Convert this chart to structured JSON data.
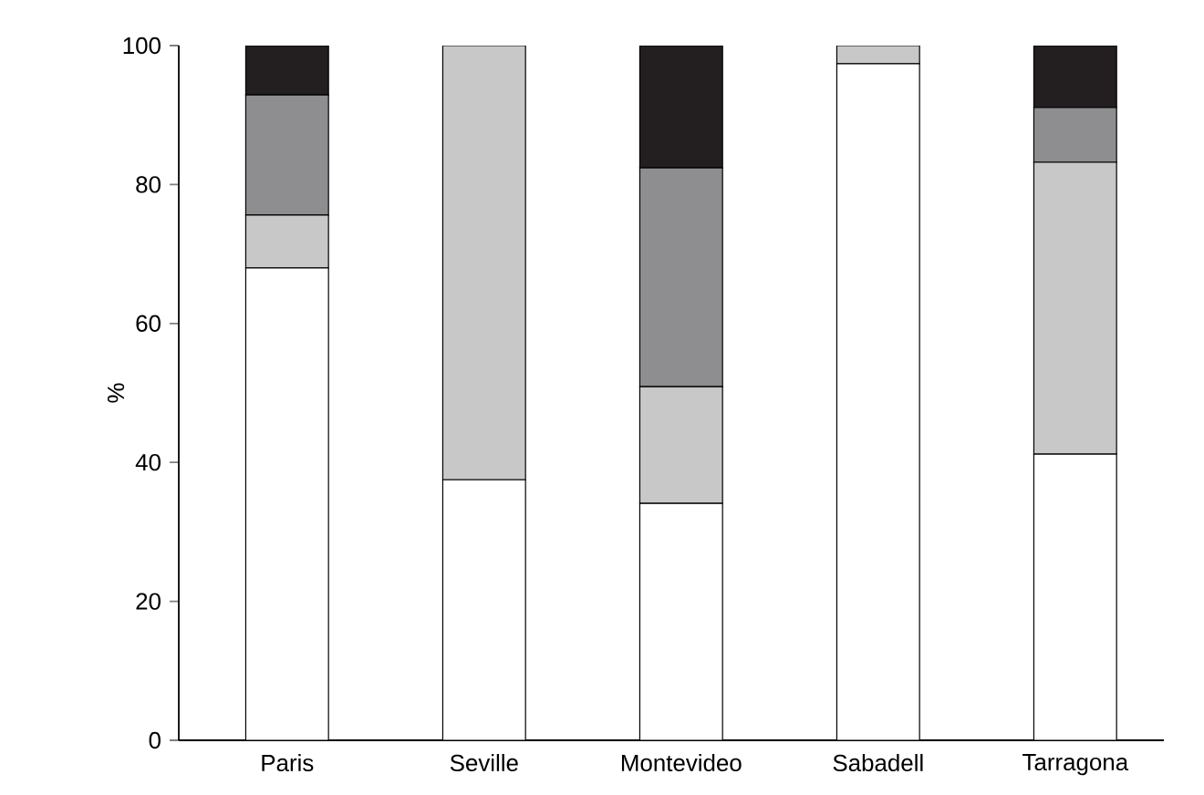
{
  "chart_data": {
    "type": "bar",
    "stacked": true,
    "ylabel": "%",
    "categories": [
      "Paris",
      "Seville",
      "Montevideo",
      "Sabadell",
      "Tarragona"
    ],
    "series": [
      {
        "color": "#ffffff",
        "values": [
          68,
          37.5,
          34.1,
          97.4,
          41.2
        ]
      },
      {
        "color": "#c8c8c8",
        "values": [
          7.6,
          62.5,
          16.8,
          2.6,
          42
        ]
      },
      {
        "color": "#8e8e90",
        "values": [
          17.3,
          0,
          31.5,
          0,
          7.9
        ]
      },
      {
        "color": "#231f20",
        "values": [
          7.1,
          0,
          17.6,
          0,
          8.9
        ]
      }
    ],
    "ylim": [
      0,
      100
    ],
    "yticks": [
      0,
      20,
      40,
      60,
      80,
      100
    ]
  }
}
